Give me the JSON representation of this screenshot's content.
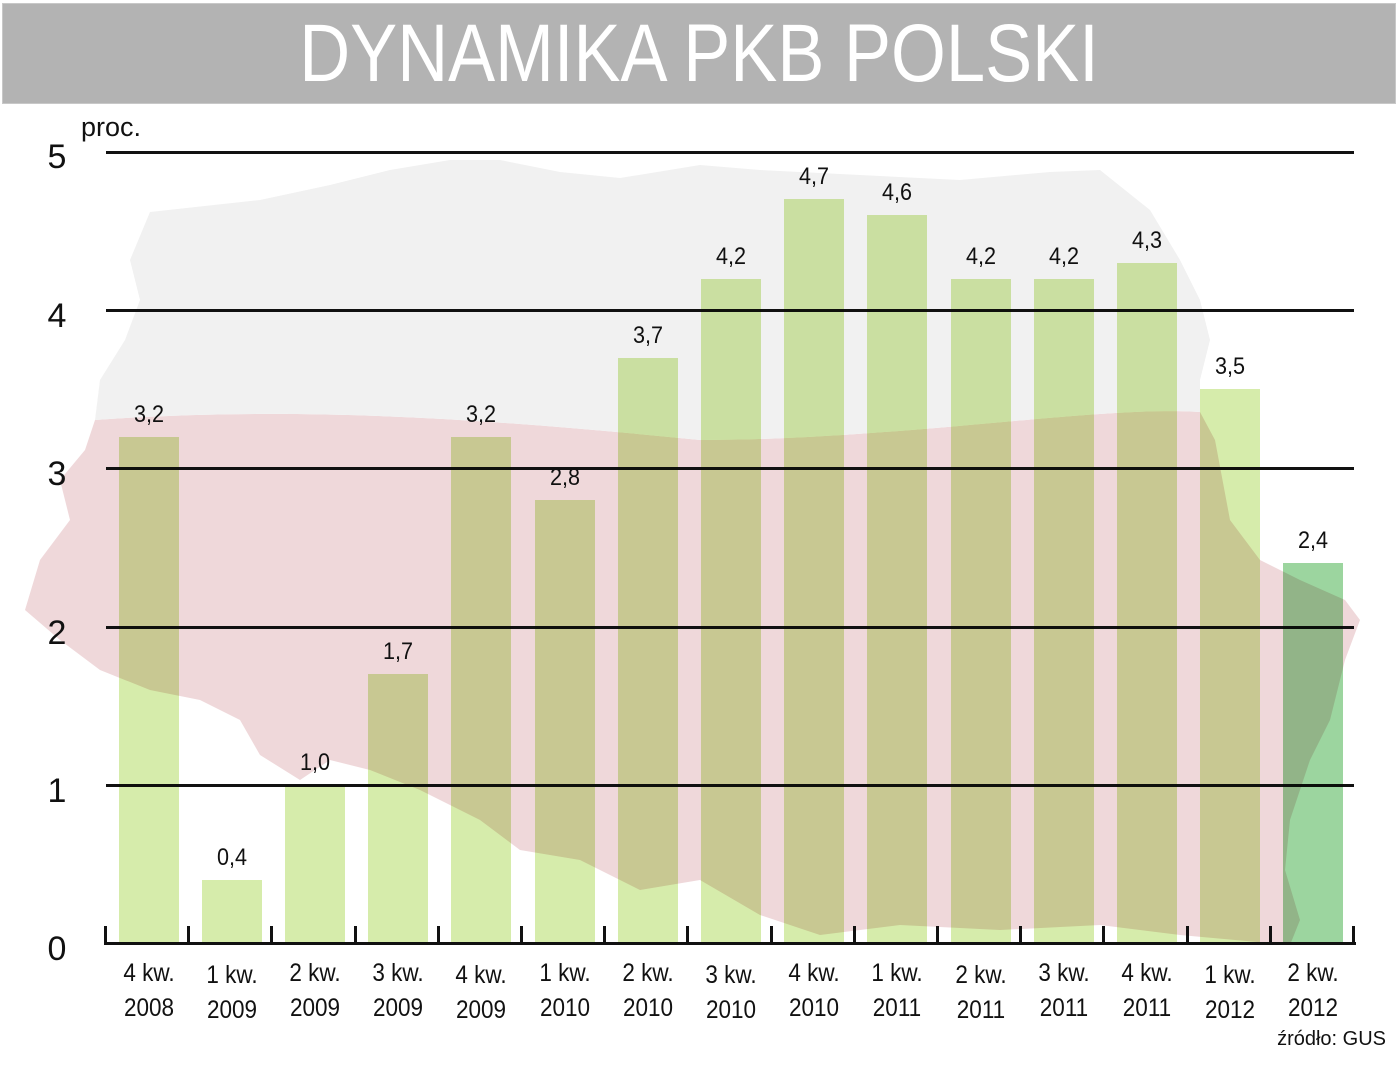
{
  "title": "DYNAMIKA PKB POLSKI",
  "unit_label": "proc.",
  "source": "źródło: GUS",
  "colors": {
    "title_band": "#b3b3b3",
    "bar": "#cde898",
    "bar_highlight": "#86cc8a",
    "map_upper": "#f1f1f1",
    "map_lower": "#efd8d9",
    "gridline": "#111111"
  },
  "y_axis": {
    "ticks": [
      "0",
      "1",
      "2",
      "3",
      "4",
      "5"
    ]
  },
  "chart_data": {
    "type": "bar",
    "title": "DYNAMIKA PKB POLSKI",
    "xlabel": "",
    "ylabel": "proc.",
    "ylim": [
      0,
      5
    ],
    "yticks": [
      0,
      1,
      2,
      3,
      4,
      5
    ],
    "grid": true,
    "legend": null,
    "annotations": [
      "źródło: GUS"
    ],
    "categories": [
      "4 kw. 2008",
      "1 kw. 2009",
      "2 kw. 2009",
      "3 kw. 2009",
      "4 kw. 2009",
      "1 kw. 2010",
      "2 kw. 2010",
      "3 kw. 2010",
      "4 kw. 2010",
      "1 kw. 2011",
      "2 kw. 2011",
      "3 kw. 2011",
      "4 kw. 2011",
      "1 kw. 2012",
      "2 kw. 2012"
    ],
    "values": [
      3.2,
      0.4,
      1.0,
      1.7,
      3.2,
      2.8,
      3.7,
      4.2,
      4.7,
      4.6,
      4.2,
      4.2,
      4.3,
      3.5,
      2.4
    ],
    "value_labels": [
      "3,2",
      "0,4",
      "1,0",
      "1,7",
      "3,2",
      "2,8",
      "3,7",
      "4,2",
      "4,7",
      "4,6",
      "4,2",
      "4,2",
      "4,3",
      "3,5",
      "2,4"
    ],
    "highlight_index": 14
  },
  "x_labels": [
    {
      "q": "4 kw.",
      "y": "2008"
    },
    {
      "q": "1 kw.",
      "y": "2009"
    },
    {
      "q": "2 kw.",
      "y": "2009"
    },
    {
      "q": "3 kw.",
      "y": "2009"
    },
    {
      "q": "4 kw.",
      "y": "2009"
    },
    {
      "q": "1 kw.",
      "y": "2010"
    },
    {
      "q": "2 kw.",
      "y": "2010"
    },
    {
      "q": "3 kw.",
      "y": "2010"
    },
    {
      "q": "4 kw.",
      "y": "2010"
    },
    {
      "q": "1 kw.",
      "y": "2011"
    },
    {
      "q": "2 kw.",
      "y": "2011"
    },
    {
      "q": "3 kw.",
      "y": "2011"
    },
    {
      "q": "4 kw.",
      "y": "2011"
    },
    {
      "q": "1 kw.",
      "y": "2012"
    },
    {
      "q": "2 kw.",
      "y": "2012"
    }
  ]
}
